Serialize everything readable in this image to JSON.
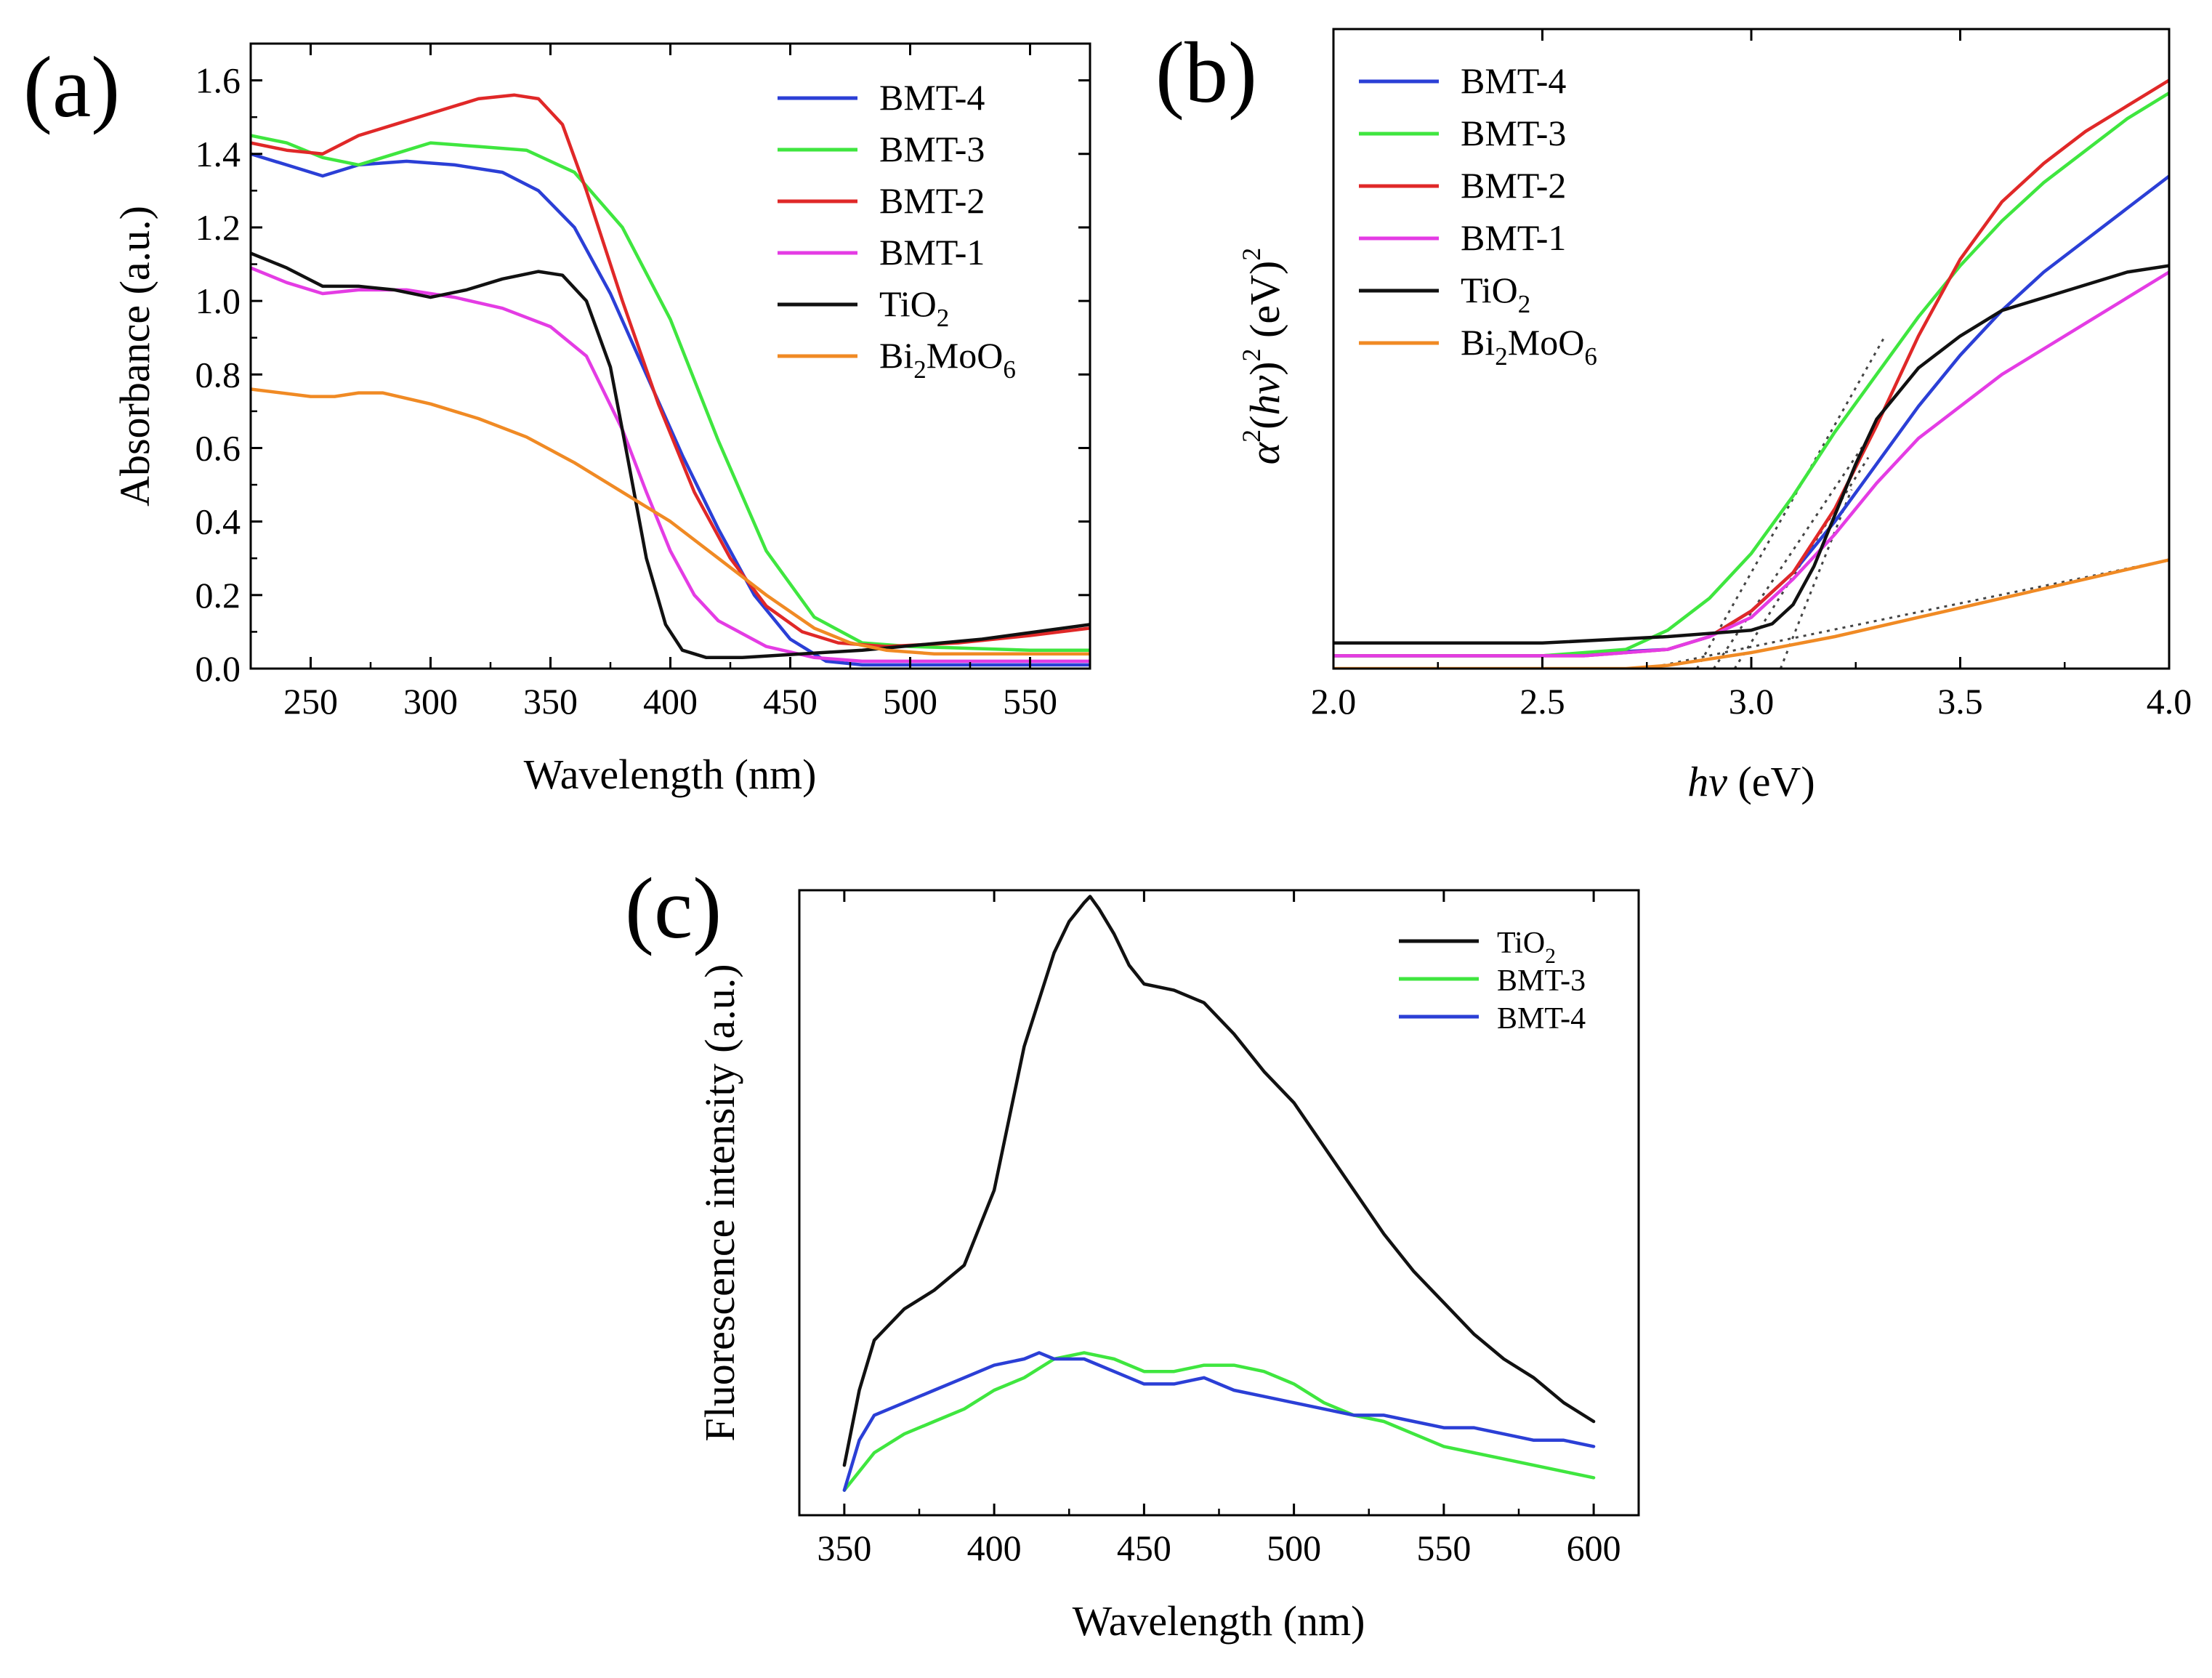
{
  "colors": {
    "BMT-4": "#2b3fd6",
    "BMT-3": "#3fe63f",
    "BMT-2": "#e02828",
    "BMT-1": "#e43ce4",
    "TiO2": "#111111",
    "Bi2MoO6": "#f08a24"
  },
  "chart_data": [
    {
      "panel": "(a)",
      "type": "line",
      "xlabel": "Wavelength (nm)",
      "ylabel": "Absorbance (a.u.)",
      "xlim": [
        225,
        575
      ],
      "ylim": [
        0.0,
        1.7
      ],
      "xticks": [
        250,
        300,
        350,
        400,
        450,
        500,
        550
      ],
      "xtick_labels": [
        "250",
        "300",
        "350",
        "400",
        "450",
        "500",
        "550"
      ],
      "yticks": [
        0.0,
        0.2,
        0.4,
        0.6,
        0.8,
        1.0,
        1.2,
        1.4,
        1.6
      ],
      "ytick_labels": [
        "0.0",
        "0.2",
        "0.4",
        "0.6",
        "0.8",
        "1.0",
        "1.2",
        "1.4",
        "1.6"
      ],
      "legend_position": "top-right",
      "series": [
        {
          "name": "BMT-4",
          "label": "BMT-4",
          "sub": "",
          "label_rest": "",
          "x": [
            225,
            240,
            255,
            270,
            290,
            310,
            330,
            345,
            360,
            375,
            390,
            405,
            420,
            435,
            450,
            465,
            480,
            500,
            550,
            575
          ],
          "y": [
            1.4,
            1.37,
            1.34,
            1.37,
            1.38,
            1.37,
            1.35,
            1.3,
            1.2,
            1.02,
            0.8,
            0.58,
            0.38,
            0.2,
            0.08,
            0.02,
            0.01,
            0.01,
            0.01,
            0.01
          ]
        },
        {
          "name": "BMT-3",
          "label": "BMT-3",
          "sub": "",
          "label_rest": "",
          "x": [
            225,
            240,
            255,
            270,
            285,
            300,
            320,
            340,
            360,
            380,
            400,
            420,
            440,
            460,
            480,
            500,
            550,
            575
          ],
          "y": [
            1.45,
            1.43,
            1.39,
            1.37,
            1.4,
            1.43,
            1.42,
            1.41,
            1.35,
            1.2,
            0.95,
            0.62,
            0.32,
            0.14,
            0.07,
            0.06,
            0.05,
            0.05
          ]
        },
        {
          "name": "BMT-2",
          "label": "BMT-2",
          "sub": "",
          "label_rest": "",
          "x": [
            225,
            240,
            255,
            270,
            285,
            300,
            320,
            335,
            345,
            355,
            365,
            380,
            395,
            410,
            425,
            440,
            455,
            470,
            490,
            520,
            550,
            575
          ],
          "y": [
            1.43,
            1.41,
            1.4,
            1.45,
            1.48,
            1.51,
            1.55,
            1.56,
            1.55,
            1.48,
            1.3,
            1.0,
            0.72,
            0.48,
            0.3,
            0.17,
            0.1,
            0.07,
            0.06,
            0.07,
            0.09,
            0.11
          ]
        },
        {
          "name": "BMT-1",
          "label": "BMT-1",
          "sub": "",
          "label_rest": "",
          "x": [
            225,
            240,
            255,
            270,
            290,
            310,
            330,
            350,
            365,
            380,
            390,
            400,
            410,
            420,
            440,
            460,
            480,
            500,
            550,
            575
          ],
          "y": [
            1.09,
            1.05,
            1.02,
            1.03,
            1.03,
            1.01,
            0.98,
            0.93,
            0.85,
            0.65,
            0.48,
            0.32,
            0.2,
            0.13,
            0.06,
            0.03,
            0.02,
            0.02,
            0.02,
            0.02
          ]
        },
        {
          "name": "TiO2",
          "label": "TiO",
          "sub": "2",
          "label_rest": "",
          "x": [
            225,
            240,
            255,
            270,
            285,
            300,
            315,
            330,
            345,
            355,
            365,
            375,
            382,
            390,
            398,
            405,
            415,
            430,
            480,
            530,
            575
          ],
          "y": [
            1.13,
            1.09,
            1.04,
            1.04,
            1.03,
            1.01,
            1.03,
            1.06,
            1.08,
            1.07,
            1.0,
            0.82,
            0.58,
            0.3,
            0.12,
            0.05,
            0.03,
            0.03,
            0.05,
            0.08,
            0.12
          ]
        },
        {
          "name": "Bi2MoO6",
          "label": "Bi",
          "sub": "2",
          "label_rest": "MoO₆",
          "x": [
            225,
            250,
            260,
            270,
            280,
            300,
            320,
            340,
            360,
            380,
            400,
            420,
            440,
            460,
            475,
            490,
            510,
            550,
            575
          ],
          "y": [
            0.76,
            0.74,
            0.74,
            0.75,
            0.75,
            0.72,
            0.68,
            0.63,
            0.56,
            0.48,
            0.4,
            0.3,
            0.2,
            0.11,
            0.07,
            0.05,
            0.04,
            0.04,
            0.04
          ]
        }
      ]
    },
    {
      "panel": "(b)",
      "type": "line",
      "xlabel_italic": "hv",
      "xlabel_rest": " (eV)",
      "ylabel_parts": [
        "α",
        "2",
        "(",
        "hv",
        ")",
        "2",
        " (eV)",
        "2"
      ],
      "xlim": [
        2.0,
        4.0
      ],
      "ylim": [
        0.0,
        1.0
      ],
      "xticks": [
        2.0,
        2.5,
        3.0,
        3.5,
        4.0
      ],
      "xtick_labels": [
        "2.0",
        "2.5",
        "3.0",
        "3.5",
        "4.0"
      ],
      "yticks": [],
      "legend_position": "top-left",
      "series": [
        {
          "name": "BMT-4",
          "label": "BMT-4",
          "sub": "",
          "label_rest": "",
          "x": [
            2.0,
            2.5,
            2.8,
            2.9,
            3.0,
            3.1,
            3.2,
            3.3,
            3.4,
            3.5,
            3.6,
            3.7,
            3.8,
            3.9,
            4.0
          ],
          "y": [
            0.02,
            0.02,
            0.03,
            0.05,
            0.09,
            0.15,
            0.23,
            0.32,
            0.41,
            0.49,
            0.56,
            0.62,
            0.67,
            0.72,
            0.77
          ]
        },
        {
          "name": "BMT-3",
          "label": "BMT-3",
          "sub": "",
          "label_rest": "",
          "x": [
            2.0,
            2.5,
            2.7,
            2.8,
            2.9,
            3.0,
            3.1,
            3.2,
            3.3,
            3.4,
            3.5,
            3.6,
            3.7,
            3.8,
            3.9,
            4.0
          ],
          "y": [
            0.02,
            0.02,
            0.03,
            0.06,
            0.11,
            0.18,
            0.27,
            0.37,
            0.46,
            0.55,
            0.63,
            0.7,
            0.76,
            0.81,
            0.86,
            0.9
          ]
        },
        {
          "name": "BMT-2",
          "label": "BMT-2",
          "sub": "",
          "label_rest": "",
          "x": [
            2.0,
            2.6,
            2.8,
            2.9,
            3.0,
            3.1,
            3.2,
            3.3,
            3.4,
            3.5,
            3.6,
            3.7,
            3.8,
            3.9,
            4.0
          ],
          "y": [
            0.02,
            0.02,
            0.03,
            0.05,
            0.09,
            0.15,
            0.25,
            0.38,
            0.52,
            0.64,
            0.73,
            0.79,
            0.84,
            0.88,
            0.92
          ]
        },
        {
          "name": "BMT-1",
          "label": "BMT-1",
          "sub": "",
          "label_rest": "",
          "x": [
            2.0,
            2.6,
            2.8,
            2.9,
            3.0,
            3.1,
            3.2,
            3.3,
            3.4,
            3.5,
            3.6,
            3.7,
            3.8,
            3.9,
            4.0
          ],
          "y": [
            0.02,
            0.02,
            0.03,
            0.05,
            0.08,
            0.14,
            0.21,
            0.29,
            0.36,
            0.41,
            0.46,
            0.5,
            0.54,
            0.58,
            0.62
          ]
        },
        {
          "name": "TiO2",
          "label": "TiO",
          "sub": "2",
          "label_rest": "",
          "x": [
            2.0,
            2.5,
            2.8,
            3.0,
            3.05,
            3.1,
            3.15,
            3.2,
            3.25,
            3.3,
            3.4,
            3.5,
            3.6,
            3.7,
            3.8,
            3.9,
            4.0
          ],
          "y": [
            0.04,
            0.04,
            0.05,
            0.06,
            0.07,
            0.1,
            0.16,
            0.24,
            0.32,
            0.39,
            0.47,
            0.52,
            0.56,
            0.58,
            0.6,
            0.62,
            0.63
          ]
        },
        {
          "name": "Bi2MoO6",
          "label": "Bi",
          "sub": "2",
          "label_rest": "MoO₆",
          "x": [
            2.0,
            2.7,
            2.8,
            2.9,
            3.0,
            3.2,
            3.4,
            3.6,
            3.8,
            4.0
          ],
          "y": [
            0.0,
            0.0,
            0.005,
            0.015,
            0.025,
            0.05,
            0.08,
            0.11,
            0.14,
            0.17
          ]
        }
      ],
      "fits": [
        {
          "x": [
            2.87,
            3.32
          ],
          "y": [
            0.0,
            0.52
          ]
        },
        {
          "x": [
            2.91,
            3.3
          ],
          "y": [
            0.0,
            0.38
          ]
        },
        {
          "x": [
            2.96,
            3.28
          ],
          "y": [
            0.0,
            0.33
          ]
        },
        {
          "x": [
            3.07,
            3.24
          ],
          "y": [
            0.0,
            0.28
          ]
        },
        {
          "x": [
            2.75,
            4.0
          ],
          "y": [
            0.0,
            0.17
          ]
        }
      ]
    },
    {
      "panel": "(c)",
      "type": "line",
      "xlabel": "Wavelength (nm)",
      "ylabel": "Fluorescence intensity (a.u.)",
      "xlim": [
        335,
        615
      ],
      "ylim": [
        0.0,
        1.0
      ],
      "xticks": [
        350,
        400,
        450,
        500,
        550,
        600
      ],
      "xtick_labels": [
        "350",
        "400",
        "450",
        "500",
        "550",
        "600"
      ],
      "yticks": [],
      "legend_position": "top-right",
      "series": [
        {
          "name": "TiO2",
          "label": "TiO",
          "sub": "2",
          "label_rest": "",
          "x": [
            350,
            355,
            360,
            370,
            380,
            390,
            400,
            410,
            420,
            425,
            430,
            432,
            435,
            440,
            445,
            450,
            460,
            470,
            480,
            490,
            500,
            510,
            520,
            530,
            540,
            550,
            560,
            570,
            580,
            590,
            600
          ],
          "y": [
            0.08,
            0.2,
            0.28,
            0.33,
            0.36,
            0.4,
            0.52,
            0.75,
            0.9,
            0.95,
            0.98,
            0.99,
            0.97,
            0.93,
            0.88,
            0.85,
            0.84,
            0.82,
            0.77,
            0.71,
            0.66,
            0.59,
            0.52,
            0.45,
            0.39,
            0.34,
            0.29,
            0.25,
            0.22,
            0.18,
            0.15
          ]
        },
        {
          "name": "BMT-3",
          "label": "BMT-3",
          "sub": "",
          "label_rest": "",
          "x": [
            350,
            360,
            370,
            380,
            390,
            400,
            410,
            420,
            430,
            440,
            450,
            460,
            470,
            480,
            490,
            500,
            510,
            520,
            530,
            540,
            550,
            560,
            570,
            580,
            590,
            600
          ],
          "y": [
            0.04,
            0.1,
            0.13,
            0.15,
            0.17,
            0.2,
            0.22,
            0.25,
            0.26,
            0.25,
            0.23,
            0.23,
            0.24,
            0.24,
            0.23,
            0.21,
            0.18,
            0.16,
            0.15,
            0.13,
            0.11,
            0.1,
            0.09,
            0.08,
            0.07,
            0.06
          ]
        },
        {
          "name": "BMT-4",
          "label": "BMT-4",
          "sub": "",
          "label_rest": "",
          "x": [
            350,
            355,
            360,
            370,
            380,
            390,
            400,
            410,
            415,
            420,
            430,
            440,
            450,
            460,
            470,
            480,
            490,
            500,
            510,
            520,
            530,
            540,
            550,
            560,
            570,
            580,
            590,
            600
          ],
          "y": [
            0.04,
            0.12,
            0.16,
            0.18,
            0.2,
            0.22,
            0.24,
            0.25,
            0.26,
            0.25,
            0.25,
            0.23,
            0.21,
            0.21,
            0.22,
            0.2,
            0.19,
            0.18,
            0.17,
            0.16,
            0.16,
            0.15,
            0.14,
            0.14,
            0.13,
            0.12,
            0.12,
            0.11
          ]
        }
      ]
    }
  ]
}
